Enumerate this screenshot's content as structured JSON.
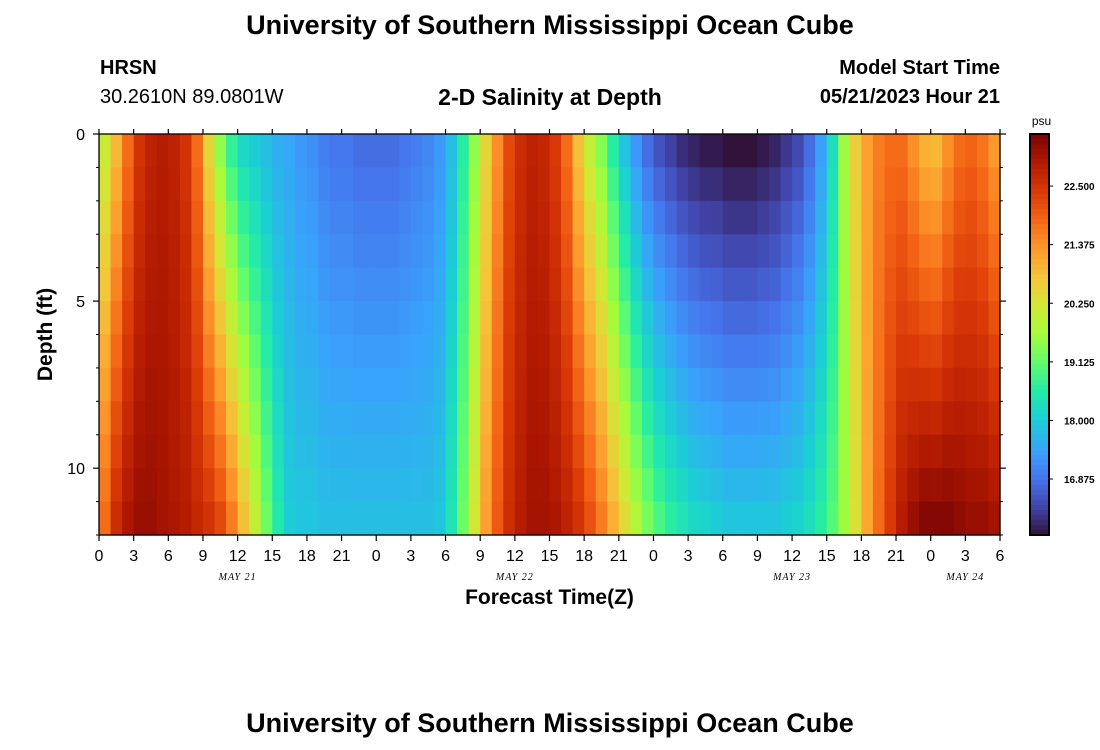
{
  "header": {
    "title": "University of Southern Mississippi Ocean Cube",
    "station": "HRSN",
    "coords": "30.2610N  89.0801W",
    "plot_title": "2-D Salinity at Depth",
    "start_label": "Model Start Time",
    "start_value": "05/21/2023 Hour 21"
  },
  "footer": {
    "title": "University of Southern Mississippi Ocean Cube"
  },
  "chart_data": {
    "type": "heatmap",
    "title": "2-D Salinity at Depth",
    "xlabel": "Forecast Time(Z)",
    "ylabel": "Depth (ft)",
    "x_ticks": [
      "0",
      "3",
      "6",
      "9",
      "12",
      "15",
      "18",
      "21",
      "0",
      "3",
      "6",
      "9",
      "12",
      "15",
      "18",
      "21",
      "0",
      "3",
      "6",
      "9",
      "12",
      "15",
      "18",
      "21",
      "0",
      "3",
      "6"
    ],
    "date_labels": [
      "MAY 21",
      "MAY 22",
      "MAY 23",
      "MAY 24"
    ],
    "date_label_positions_hours": [
      12,
      36,
      60,
      75
    ],
    "y_ticks": [
      "0",
      "5",
      "10"
    ],
    "y_tick_values": [
      0,
      5,
      10
    ],
    "xlim_hours": [
      0,
      78
    ],
    "ylim_ft": [
      0,
      12
    ],
    "colorbar": {
      "unit": "psu",
      "range": [
        15.8,
        23.5
      ],
      "ticks": [
        "22.500",
        "21.375",
        "20.250",
        "19.125",
        "18.000",
        "16.875"
      ],
      "tick_values": [
        22.5,
        21.375,
        20.25,
        19.125,
        18.0,
        16.875
      ]
    },
    "depth_rows_ft": [
      0.5,
      1.5,
      2.5,
      3.5,
      4.5,
      5.5,
      6.5,
      7.5,
      8.5,
      9.5,
      10.5,
      11.5
    ],
    "time_columns_hours": [
      0,
      1,
      2,
      3,
      4,
      5,
      6,
      7,
      8,
      9,
      10,
      11,
      12,
      13,
      14,
      15,
      16,
      17,
      18,
      19,
      20,
      21,
      22,
      23,
      24,
      25,
      26,
      27,
      28,
      29,
      30,
      31,
      32,
      33,
      34,
      35,
      36,
      37,
      38,
      39,
      40,
      41,
      42,
      43,
      44,
      45,
      46,
      47,
      48,
      49,
      50,
      51,
      52,
      53,
      54,
      55,
      56,
      57,
      58,
      59,
      60,
      61,
      62,
      63,
      64,
      65,
      66,
      67,
      68,
      69,
      70,
      71,
      72,
      73,
      74,
      75,
      76,
      77
    ],
    "surface_salinity_psu": [
      20.1,
      20.9,
      21.8,
      22.5,
      22.8,
      22.9,
      22.8,
      22.5,
      21.8,
      20.5,
      19.5,
      18.7,
      18.2,
      18.0,
      17.8,
      17.6,
      17.5,
      17.3,
      17.2,
      17.0,
      16.9,
      16.9,
      16.8,
      16.8,
      16.8,
      16.8,
      16.9,
      17.0,
      17.1,
      17.3,
      17.8,
      18.6,
      19.5,
      20.5,
      21.4,
      22.2,
      22.6,
      22.8,
      22.7,
      22.4,
      21.8,
      20.8,
      20.0,
      19.4,
      18.6,
      17.9,
      17.3,
      16.8,
      16.5,
      16.3,
      16.1,
      16.0,
      15.9,
      15.9,
      15.8,
      15.8,
      15.8,
      15.9,
      16.0,
      16.2,
      16.4,
      16.8,
      17.4,
      18.3,
      19.6,
      20.6,
      21.2,
      21.6,
      21.8,
      21.8,
      21.4,
      21.0,
      20.9,
      21.4,
      21.8,
      21.9,
      21.7,
      21.3
    ],
    "bottom_salinity_psu": [
      21.8,
      22.6,
      23.0,
      23.2,
      23.2,
      23.1,
      23.0,
      22.9,
      22.7,
      22.5,
      22.2,
      21.6,
      20.8,
      20.0,
      19.2,
      18.5,
      18.0,
      17.9,
      17.9,
      17.8,
      17.8,
      17.8,
      17.8,
      17.8,
      17.8,
      17.8,
      17.8,
      17.8,
      17.8,
      17.9,
      18.4,
      19.2,
      20.2,
      21.2,
      22.0,
      22.6,
      22.9,
      23.1,
      23.1,
      23.0,
      22.8,
      22.5,
      22.1,
      21.6,
      21.0,
      20.4,
      19.8,
      19.3,
      18.9,
      18.6,
      18.4,
      18.2,
      18.1,
      18.0,
      17.9,
      17.9,
      17.9,
      17.9,
      17.9,
      18.0,
      18.1,
      18.3,
      18.6,
      19.0,
      19.6,
      20.3,
      21.1,
      21.8,
      22.4,
      22.9,
      23.2,
      23.4,
      23.4,
      23.4,
      23.3,
      23.2,
      23.2,
      23.1
    ]
  }
}
